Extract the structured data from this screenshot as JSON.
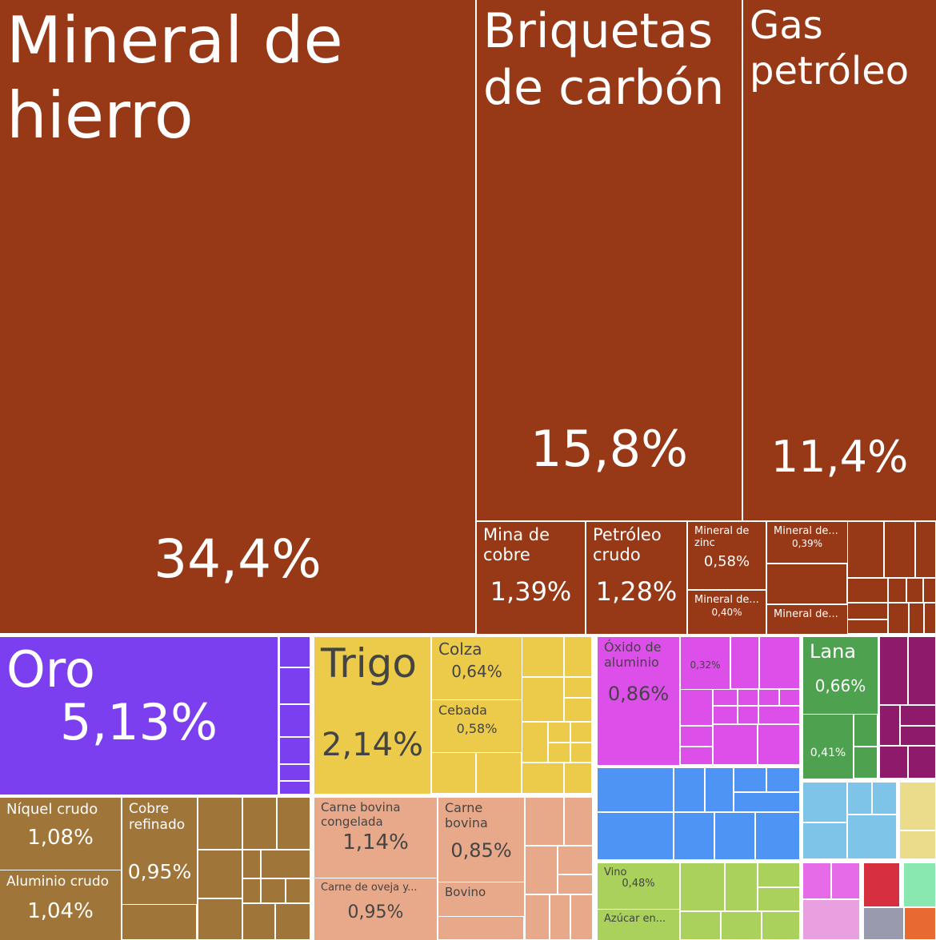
{
  "chart_data": {
    "type": "treemap",
    "labels": [
      "Mineral de hierro",
      "Briquetas de carbón",
      "Gas petróleo",
      "Mina de cobre",
      "Petróleo crudo",
      "Mineral de zinc",
      "Mineral de...",
      "Mineral de...",
      "Mineral de...",
      "Oro",
      "Trigo",
      "Colza",
      "Cebada",
      "Níquel crudo",
      "Aluminio crudo",
      "Cobre refinado",
      "Carne bovina congelada",
      "Carne de oveja y...",
      "Carne bovina",
      "Bovino",
      "Óxido de aluminio",
      null,
      "Lana",
      null,
      "Vino",
      "Azúcar en..."
    ],
    "values": [
      34.4,
      15.8,
      11.4,
      1.39,
      1.28,
      0.58,
      0.4,
      0.39,
      null,
      5.13,
      2.14,
      0.64,
      0.58,
      1.08,
      1.04,
      0.95,
      1.14,
      0.95,
      0.85,
      null,
      0.86,
      0.32,
      0.66,
      0.41,
      0.48,
      null
    ],
    "value_labels": [
      "34,4%",
      "15,8%",
      "11,4%",
      "1,39%",
      "1,28%",
      "0,58%",
      "0,40%",
      "0,39%",
      null,
      "5,13%",
      "2,14%",
      "0,64%",
      "0,58%",
      "1,08%",
      "1,04%",
      "0,95%",
      "1,14%",
      "0,95%",
      "0,85%",
      null,
      "0,86%",
      "0,32%",
      "0,66%",
      "0,41%",
      "0,48%",
      null
    ],
    "colors": [
      "#973816",
      "#973816",
      "#973816",
      "#973816",
      "#973816",
      "#973816",
      "#973816",
      "#973816",
      "#973816",
      "#7b3ff0",
      "#ecca4a",
      "#ecca4a",
      "#ecca4a",
      "#a07539",
      "#a07539",
      "#a07539",
      "#e8a98a",
      "#e8a98a",
      "#e8a98a",
      "#e8a98a",
      "#dc4fe8",
      "#dc4fe8",
      "#4ea14f",
      "#4ea14f",
      "#a9d15b",
      "#a9d15b"
    ]
  }
}
